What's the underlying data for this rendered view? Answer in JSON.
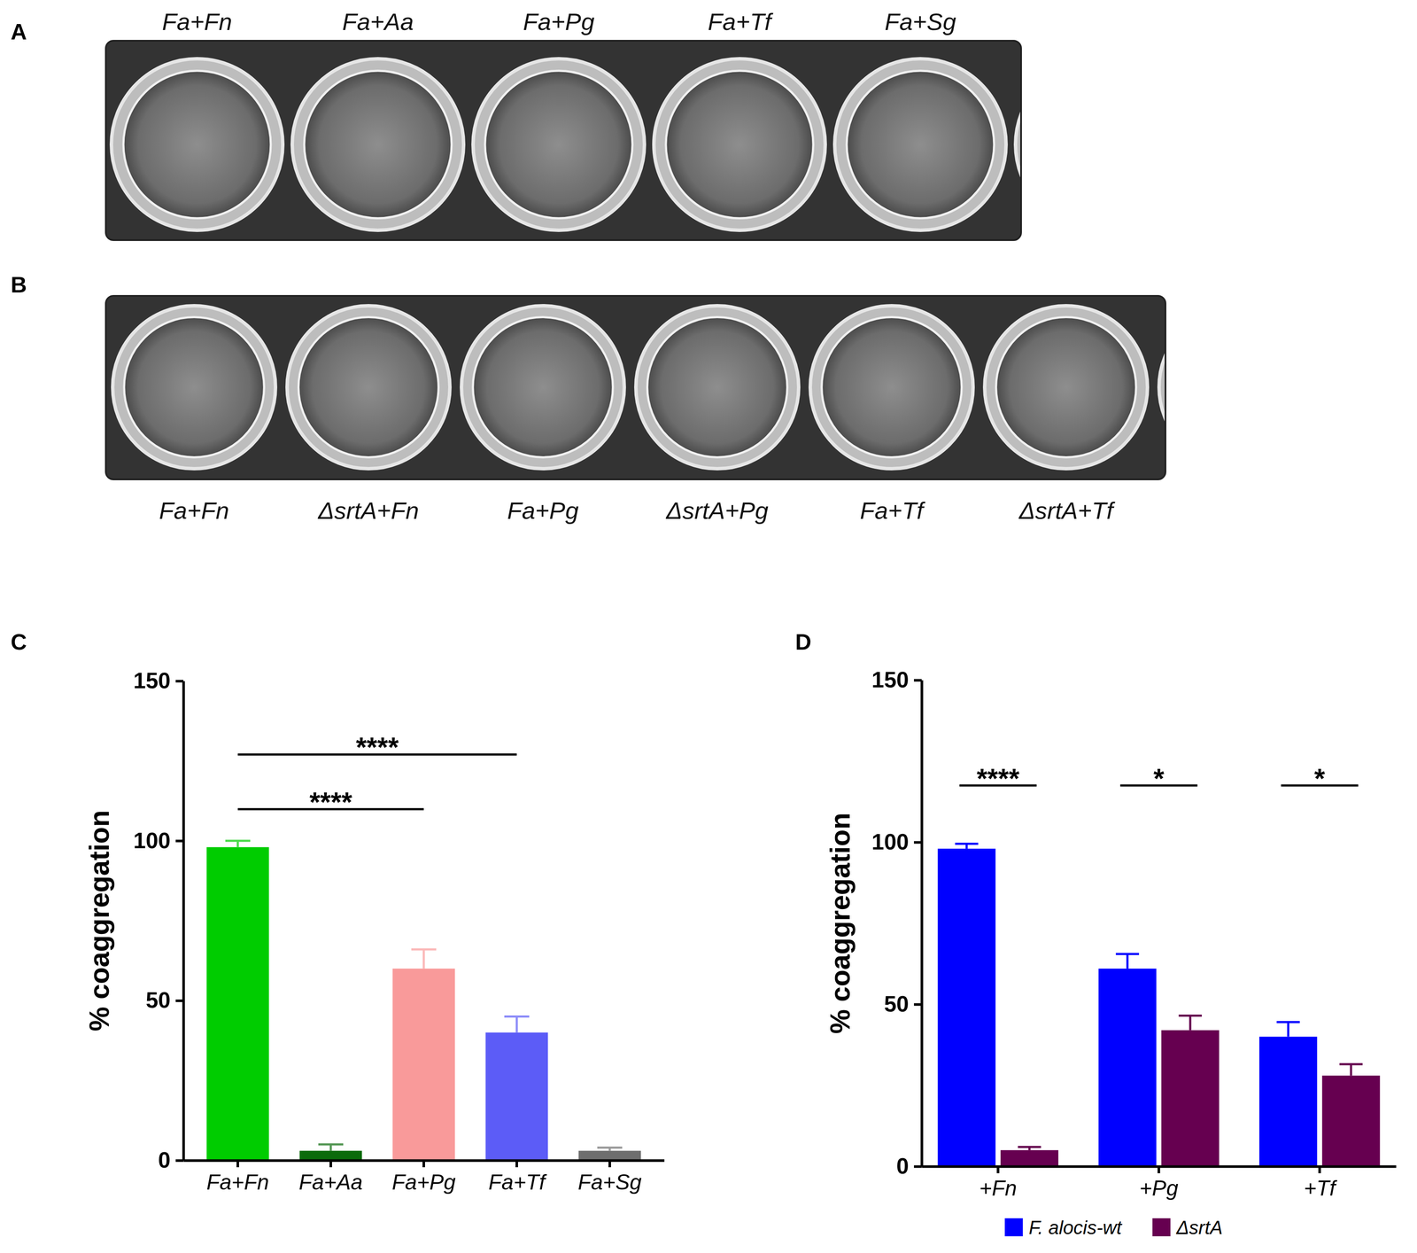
{
  "plates": [
    {
      "panel_label": "A",
      "wells": [
        "Fa+Fn",
        "Fa+Aa",
        "Fa+Pg",
        "Fa+Tf",
        "Fa+Sg"
      ]
    },
    {
      "panel_label": "B",
      "wells": [
        "Fa+Fn",
        "ΔsrtA+Fn",
        "Fa+Pg",
        "ΔsrtA+Pg",
        "Fa+Tf",
        "ΔsrtA+Tf"
      ]
    }
  ],
  "chart_data": [
    {
      "type": "bar",
      "panel_label": "C",
      "y_label": "% coaggregation",
      "categories": [
        "Fa+Fn",
        "Fa+Aa",
        "Fa+Pg",
        "Fa+Tf",
        "Fa+Sg"
      ],
      "values": [
        98,
        3,
        60,
        40,
        3
      ],
      "errors": [
        2,
        2,
        6,
        5,
        1
      ],
      "colors": [
        "#00cc00",
        "#0b6b0b",
        "#f99a9a",
        "#5c5cf7",
        "#6e6e6e"
      ],
      "ylim": [
        0,
        150
      ],
      "yticks": [
        0,
        50,
        100,
        150
      ],
      "annotations": [
        {
          "text": "****",
          "from": "Fa+Fn",
          "to": "Fa+Pg"
        },
        {
          "text": "****",
          "from": "Fa+Fn",
          "to": "Fa+Tf"
        }
      ]
    },
    {
      "type": "bar",
      "panel_label": "D",
      "y_label": "% coaggregation",
      "categories": [
        "+Fn",
        "+Pg",
        "+Tf"
      ],
      "series": [
        {
          "name": "F. alocis-wt",
          "color": "#0000ff",
          "values": [
            98,
            61,
            40
          ],
          "errors": [
            1.5,
            4.5,
            4.5
          ]
        },
        {
          "name": "ΔsrtA",
          "color": "#660050",
          "values": [
            5,
            42,
            28
          ],
          "errors": [
            1,
            4.5,
            3.5
          ]
        }
      ],
      "ylim": [
        0,
        150
      ],
      "yticks": [
        0,
        50,
        100,
        150
      ],
      "legend": "bottom",
      "annotations": [
        {
          "text": "****",
          "category": "+Fn"
        },
        {
          "text": "*",
          "category": "+Pg"
        },
        {
          "text": "*",
          "category": "+Tf"
        }
      ]
    }
  ]
}
